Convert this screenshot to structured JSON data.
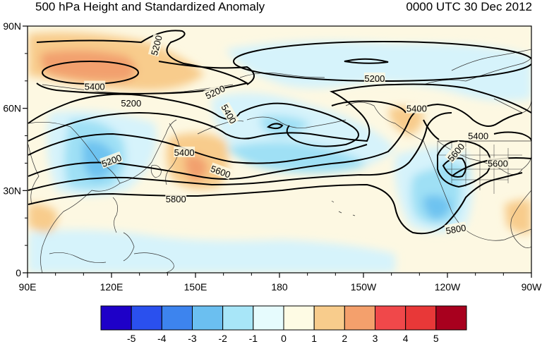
{
  "title_left": "500 hPa Height and Standardized Anomaly",
  "title_right": "0000 UTC 30 Dec 2012",
  "lat_ticks": [
    "90N",
    "60N",
    "30N",
    "0"
  ],
  "lon_ticks": [
    "90E",
    "120E",
    "150E",
    "180",
    "150W",
    "120W",
    "90W"
  ],
  "lon_range": [
    90,
    270
  ],
  "lat_range": [
    0,
    90
  ],
  "contour_labels": [
    {
      "text": "5200",
      "lon": 136,
      "lat": 83,
      "rot": -75
    },
    {
      "text": "5400",
      "lon": 114,
      "lat": 68,
      "rot": 0
    },
    {
      "text": "5200",
      "lon": 127,
      "lat": 62,
      "rot": 0
    },
    {
      "text": "5200",
      "lon": 157,
      "lat": 66,
      "rot": -25
    },
    {
      "text": "5200",
      "lon": 214,
      "lat": 71,
      "rot": 0
    },
    {
      "text": "5400",
      "lon": 229,
      "lat": 60,
      "rot": 0
    },
    {
      "text": "5400",
      "lon": 162,
      "lat": 58,
      "rot": 60
    },
    {
      "text": "5400",
      "lon": 251,
      "lat": 50,
      "rot": 0
    },
    {
      "text": "5200",
      "lon": 120,
      "lat": 41,
      "rot": -20
    },
    {
      "text": "5400",
      "lon": 146,
      "lat": 44,
      "rot": 0
    },
    {
      "text": "5600",
      "lon": 159,
      "lat": 37,
      "rot": 20
    },
    {
      "text": "5600",
      "lon": 243,
      "lat": 44,
      "rot": -50
    },
    {
      "text": "5600",
      "lon": 258,
      "lat": 40,
      "rot": 0
    },
    {
      "text": "5800",
      "lon": 143,
      "lat": 27,
      "rot": 0
    },
    {
      "text": "5800",
      "lon": 243,
      "lat": 16,
      "rot": -10
    }
  ],
  "colorbar": {
    "labels": [
      "-5",
      "-4",
      "-3",
      "-2",
      "-1",
      "0",
      "1",
      "2",
      "3",
      "4",
      "5"
    ],
    "colors": [
      "#1e00c8",
      "#2a50ee",
      "#3d84ee",
      "#6bbff0",
      "#a8e6f8",
      "#e6fbfd",
      "#fefbe4",
      "#f8cc8c",
      "#f4a06c",
      "#f0484a",
      "#e83838",
      "#a8001e"
    ]
  },
  "anomaly_colors": {
    "neg_weak": "#d7f4fb",
    "neg_mid": "#8ad8f2",
    "neg_strong": "#58aaee",
    "pos_weak": "#fdf7dc",
    "pos_mid": "#f8cc8c",
    "pos_strong": "#f2a06e"
  }
}
